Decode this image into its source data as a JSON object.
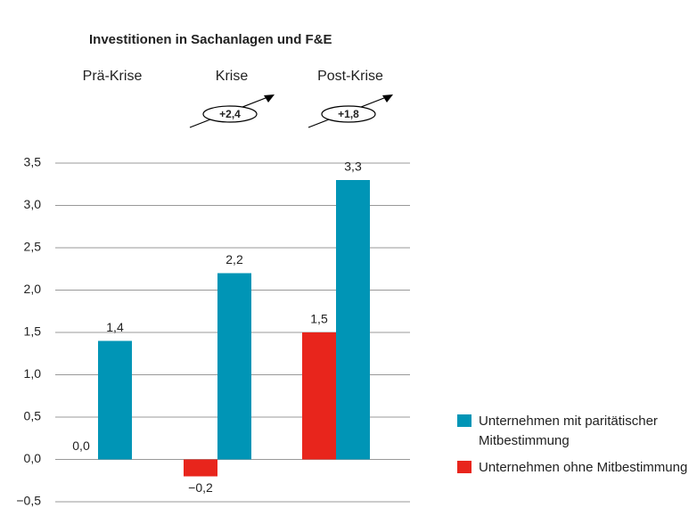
{
  "chart_data": {
    "type": "bar",
    "title": "Investitionen in Sachanlagen und F&E",
    "categories": [
      "Prä-Krise",
      "Krise",
      "Post-Krise"
    ],
    "series": [
      {
        "name": "Unternehmen ohne Mitbestimmung",
        "color": "#e8251c",
        "values": [
          0,
          -0.2,
          1.5
        ],
        "value_labels": [
          "0,0",
          "−0,2",
          "1,5"
        ]
      },
      {
        "name": "Unternehmen mit paritätischer Mitbestimmung",
        "color": "#0095b6",
        "values": [
          1.4,
          2.2,
          3.3
        ],
        "value_labels": [
          "1,4",
          "2,2",
          "3,3"
        ]
      }
    ],
    "annotations": [
      null,
      "+2,4",
      "+1,8"
    ],
    "ylim": [
      -0.5,
      3.5
    ],
    "yticks": [
      {
        "value": -0.5,
        "label": "−0,5"
      },
      {
        "value": 0,
        "label": "0,0"
      },
      {
        "value": 0.5,
        "label": "0,5"
      },
      {
        "value": 1,
        "label": "1,0"
      },
      {
        "value": 1.5,
        "label": "1,5"
      },
      {
        "value": 2,
        "label": "2,0"
      },
      {
        "value": 2.5,
        "label": "2,5"
      },
      {
        "value": 3,
        "label": "3,0"
      },
      {
        "value": 3.5,
        "label": "3,5"
      }
    ],
    "grid": true,
    "legend": "bottom-right"
  }
}
